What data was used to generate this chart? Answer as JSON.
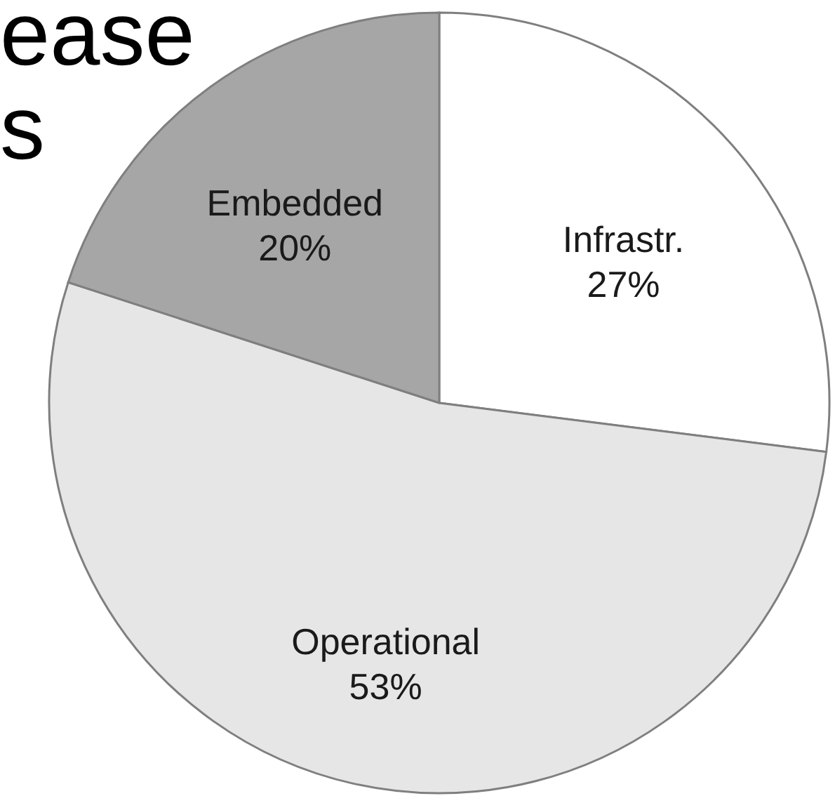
{
  "chart_data": {
    "type": "pie",
    "categories": [
      "Infrastr.",
      "Operational",
      "Embedded"
    ],
    "values": [
      27,
      53,
      20
    ],
    "value_labels": [
      "27%",
      "53%",
      "20%"
    ],
    "colors": [
      "#ffffff",
      "#e6e6e6",
      "#a6a6a6"
    ],
    "annotations": [
      "ease",
      "s"
    ]
  }
}
